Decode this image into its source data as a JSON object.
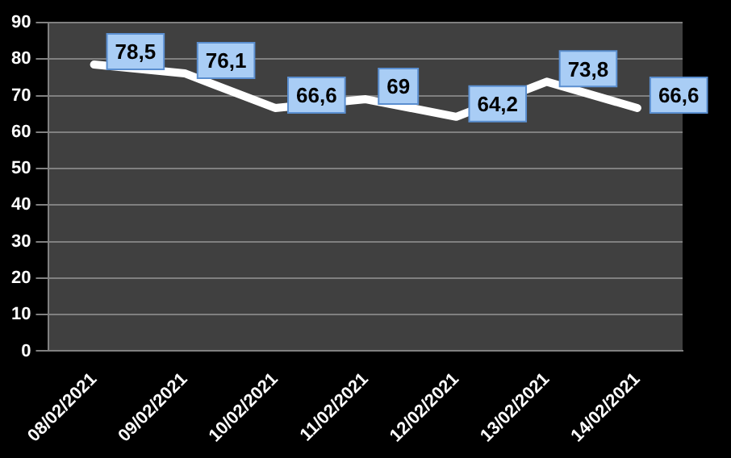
{
  "chart_data": {
    "type": "line",
    "categories": [
      "08/02/2021",
      "09/02/2021",
      "10/02/2021",
      "11/02/2021",
      "12/02/2021",
      "13/02/2021",
      "14/02/2021"
    ],
    "series": [
      {
        "color": "#ffffff",
        "values": [
          78.5,
          76.1,
          66.6,
          69,
          64.2,
          73.8,
          66.6
        ],
        "value_labels": [
          "78,5",
          "76,1",
          "66,6",
          "69",
          "64,2",
          "73,8",
          "66,6"
        ]
      }
    ],
    "ylim": [
      0,
      90
    ],
    "yticks": [
      0,
      10,
      20,
      30,
      40,
      50,
      60,
      70,
      80,
      90
    ],
    "grid": "y",
    "legend": false,
    "marker": "none",
    "line_style": "solid"
  }
}
